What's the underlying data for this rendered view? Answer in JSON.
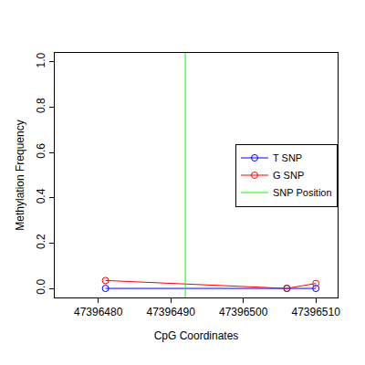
{
  "chart_data": {
    "type": "line",
    "x_label": "CpG Coordinates",
    "y_label": "Methylation Frequency",
    "xlim": [
      47396474,
      47396513
    ],
    "xticks": [
      47396480,
      47396490,
      47396500,
      47396510
    ],
    "ylim": [
      -0.04,
      1.04
    ],
    "yticks": [
      {
        "value": 0,
        "label": "0.0"
      },
      {
        "value": 0.2,
        "label": "0.2"
      },
      {
        "value": 0.4,
        "label": "0.4"
      },
      {
        "value": 0.6,
        "label": "0.6"
      },
      {
        "value": 0.8,
        "label": "0.8"
      },
      {
        "value": 1,
        "label": "1.0"
      }
    ],
    "grid": false,
    "legend": "right",
    "series": [
      {
        "name": "T SNP",
        "color": "#0000ff",
        "marker": "open-circle",
        "x": [
          47396481,
          47396506,
          47396510
        ],
        "values": [
          0.0,
          0.0,
          0.0
        ]
      },
      {
        "name": "G SNP",
        "color": "#ff0000",
        "marker": "open-circle",
        "x": [
          47396481,
          47396506,
          47396510
        ],
        "values": [
          0.035,
          0.0,
          0.022
        ]
      },
      {
        "name": "SNP Position",
        "color": "#00ff00",
        "type": "vline",
        "x": [
          47396492
        ]
      }
    ]
  }
}
